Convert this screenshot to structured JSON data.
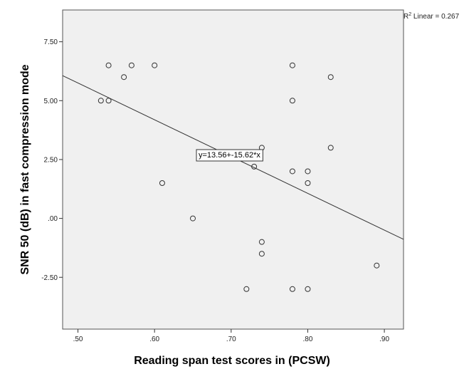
{
  "chart_data": {
    "type": "scatter",
    "xlabel": "Reading span test scores in (PCSW)",
    "ylabel": "SNR 50 (dB) in fast compression mode",
    "xlim": [
      0.48,
      0.925
    ],
    "ylim": [
      -4.7,
      8.85
    ],
    "x_ticks": [
      0.5,
      0.6,
      0.7,
      0.8,
      0.9
    ],
    "x_tick_labels": [
      ".50",
      ".60",
      ".70",
      ".80",
      ".90"
    ],
    "y_ticks": [
      -2.5,
      0,
      2.5,
      5,
      7.5
    ],
    "y_tick_labels": [
      "-2.50",
      ".00",
      "2.50",
      "5.00",
      "7.50"
    ],
    "points": [
      {
        "x": 0.53,
        "y": 5.0
      },
      {
        "x": 0.54,
        "y": 6.5
      },
      {
        "x": 0.54,
        "y": 5.0
      },
      {
        "x": 0.56,
        "y": 6.0
      },
      {
        "x": 0.57,
        "y": 6.5
      },
      {
        "x": 0.6,
        "y": 6.5
      },
      {
        "x": 0.61,
        "y": 1.5
      },
      {
        "x": 0.65,
        "y": 0.0
      },
      {
        "x": 0.72,
        "y": -3.0
      },
      {
        "x": 0.73,
        "y": 2.2
      },
      {
        "x": 0.74,
        "y": 3.0
      },
      {
        "x": 0.74,
        "y": -1.0
      },
      {
        "x": 0.74,
        "y": -1.5
      },
      {
        "x": 0.78,
        "y": 6.5
      },
      {
        "x": 0.78,
        "y": 5.0
      },
      {
        "x": 0.78,
        "y": 2.0
      },
      {
        "x": 0.78,
        "y": -3.0
      },
      {
        "x": 0.8,
        "y": 2.0
      },
      {
        "x": 0.8,
        "y": 1.5
      },
      {
        "x": 0.8,
        "y": -3.0
      },
      {
        "x": 0.83,
        "y": 6.0
      },
      {
        "x": 0.83,
        "y": 3.0
      },
      {
        "x": 0.89,
        "y": -2.0
      }
    ],
    "fit_line": {
      "intercept": 13.56,
      "slope": -15.62
    },
    "fit_equation": "y=13.56+-15.62*x",
    "r2_prefix": "R",
    "r2_superscript": "2",
    "r2_text": " Linear = 0.267",
    "grid": false,
    "legend": "none",
    "colors": {
      "plot_background": "#f0f0f0",
      "marker_stroke": "#333333",
      "fit_line": "#333333"
    }
  }
}
